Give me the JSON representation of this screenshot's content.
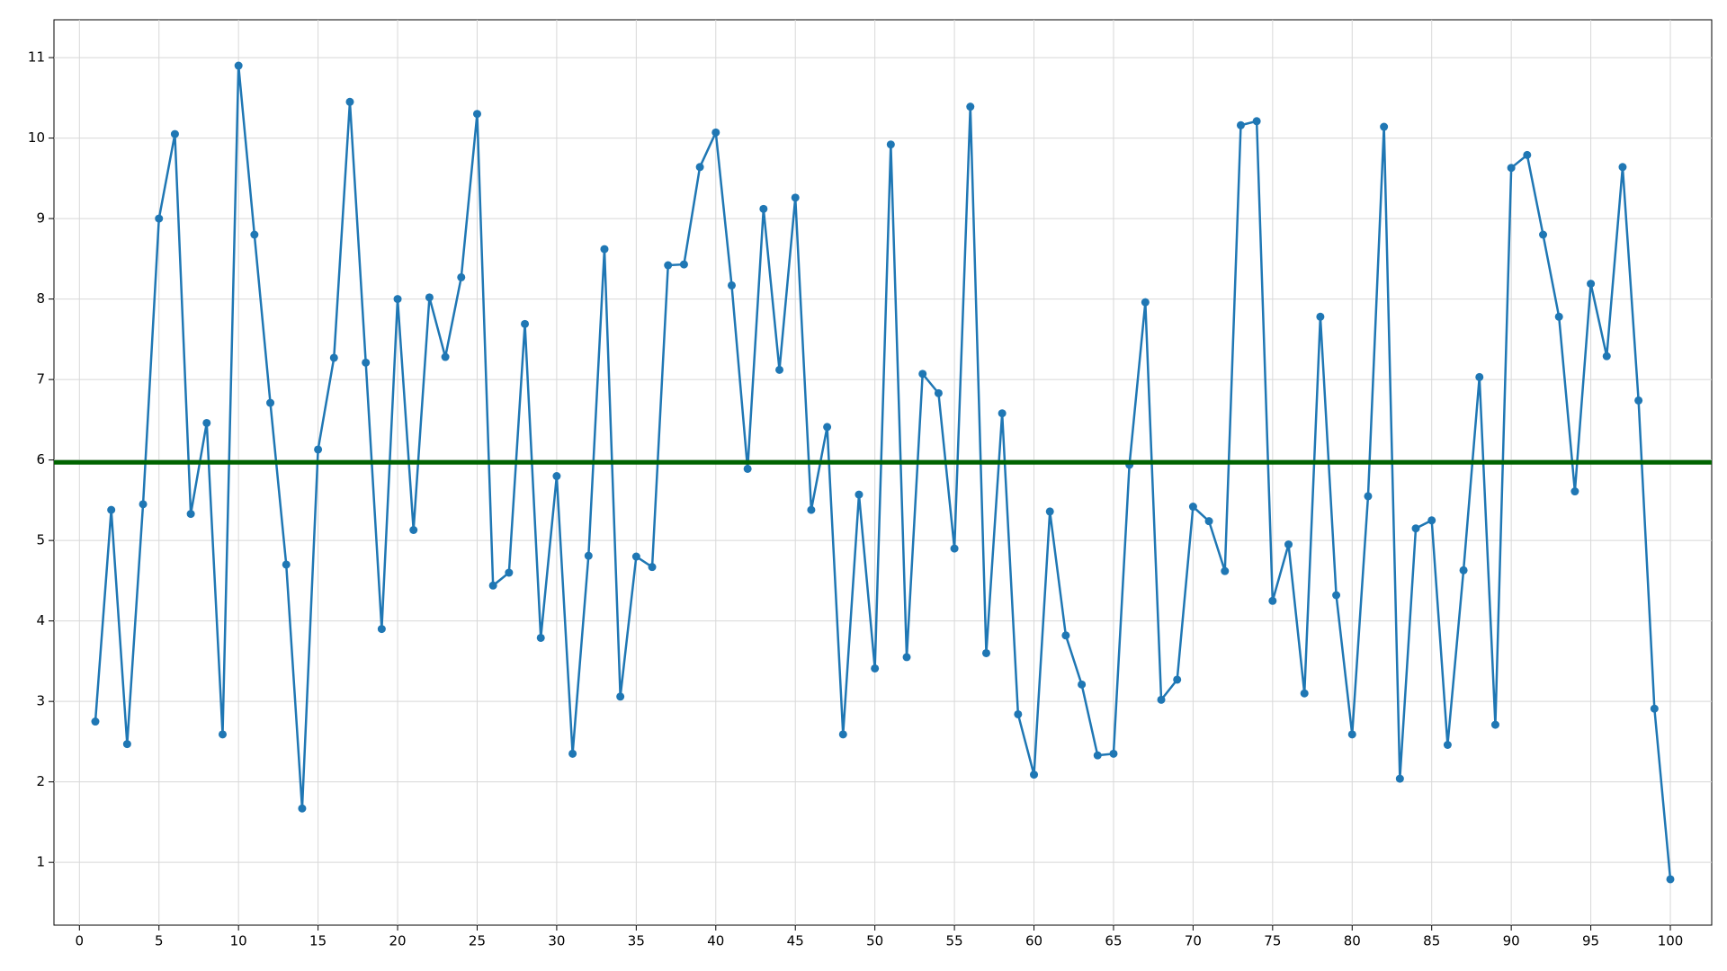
{
  "chart_data": {
    "type": "line",
    "x": [
      1,
      2,
      3,
      4,
      5,
      6,
      7,
      8,
      9,
      10,
      11,
      12,
      13,
      14,
      15,
      16,
      17,
      18,
      19,
      20,
      21,
      22,
      23,
      24,
      25,
      26,
      27,
      28,
      29,
      30,
      31,
      32,
      33,
      34,
      35,
      36,
      37,
      38,
      39,
      40,
      41,
      42,
      43,
      44,
      45,
      46,
      47,
      48,
      49,
      50,
      51,
      52,
      53,
      54,
      55,
      56,
      57,
      58,
      59,
      60,
      61,
      62,
      63,
      64,
      65,
      66,
      67,
      68,
      69,
      70,
      71,
      72,
      73,
      74,
      75,
      76,
      77,
      78,
      79,
      80,
      81,
      82,
      83,
      84,
      85,
      86,
      87,
      88,
      89,
      90,
      91,
      92,
      93,
      94,
      95,
      96,
      97,
      98,
      99,
      100
    ],
    "series": [
      {
        "color": "#1f77b4",
        "values": [
          2.75,
          5.38,
          2.47,
          5.45,
          9.0,
          10.05,
          5.33,
          6.46,
          2.59,
          10.9,
          8.8,
          6.71,
          4.7,
          1.67,
          6.13,
          7.27,
          10.45,
          7.21,
          3.9,
          8.0,
          5.13,
          8.02,
          7.28,
          8.27,
          10.3,
          4.44,
          4.6,
          7.69,
          3.79,
          5.8,
          2.35,
          4.81,
          8.62,
          3.06,
          4.8,
          4.67,
          8.42,
          8.43,
          9.64,
          10.07,
          8.17,
          5.89,
          9.12,
          7.12,
          9.26,
          5.38,
          6.41,
          2.59,
          5.57,
          3.41,
          9.92,
          3.55,
          7.07,
          6.83,
          4.9,
          10.39,
          3.6,
          6.58,
          2.84,
          2.09,
          5.36,
          3.82,
          3.21,
          2.33,
          2.35,
          5.94,
          7.96,
          3.02,
          3.27,
          5.42,
          5.24,
          4.62,
          10.16,
          10.21,
          4.25,
          4.95,
          3.1,
          7.78,
          4.32,
          2.59,
          5.55,
          10.14,
          2.04,
          5.15,
          5.25,
          2.46,
          4.63,
          7.03,
          2.71,
          9.63,
          9.79,
          8.8,
          7.78,
          5.61,
          8.19,
          7.29,
          9.64,
          6.74,
          2.91,
          0.79
        ]
      }
    ],
    "hline": {
      "value": 5.97,
      "color": "#006400"
    },
    "xlim": [
      -1.6,
      102.6
    ],
    "ylim": [
      0.22,
      11.47
    ],
    "xticks": [
      0,
      5,
      10,
      15,
      20,
      25,
      30,
      35,
      40,
      45,
      50,
      55,
      60,
      65,
      70,
      75,
      80,
      85,
      90,
      95,
      100
    ],
    "yticks": [
      1,
      2,
      3,
      4,
      5,
      6,
      7,
      8,
      9,
      10,
      11
    ],
    "grid": true
  }
}
